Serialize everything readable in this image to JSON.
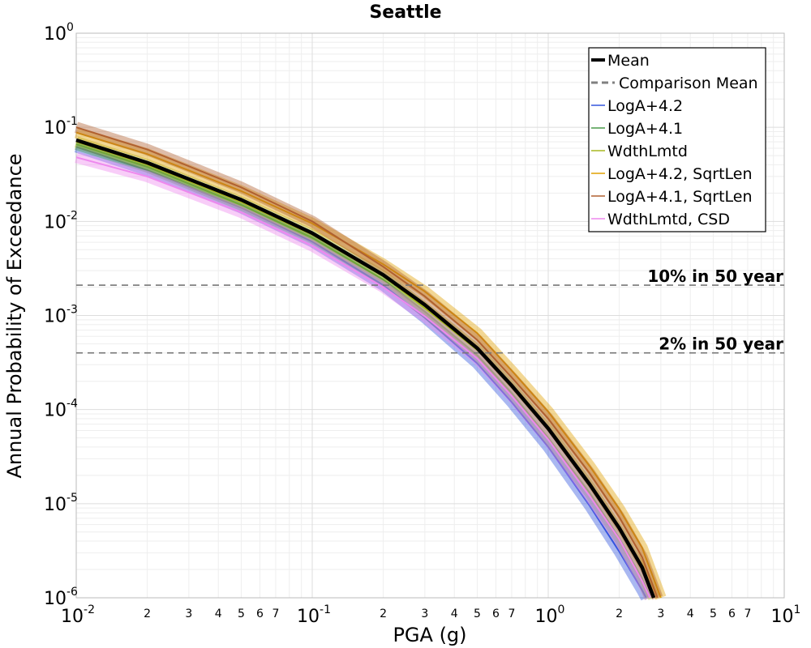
{
  "chart_data": {
    "type": "line",
    "title": "Seattle",
    "xlabel": "PGA (g)",
    "ylabel": "Annual Probability of Exceedance",
    "x_scale": "log",
    "y_scale": "log",
    "xlim": [
      0.01,
      10
    ],
    "ylim": [
      1e-06,
      1
    ],
    "grid": true,
    "legend_position": "top-right",
    "x_major_ticks": [
      {
        "base": "10",
        "exp": "-2"
      },
      {
        "base": "10",
        "exp": "-1"
      },
      {
        "base": "10",
        "exp": "0"
      },
      {
        "base": "10",
        "exp": "1"
      }
    ],
    "y_major_ticks": [
      {
        "base": "10",
        "exp": "0"
      },
      {
        "base": "10",
        "exp": "-1"
      },
      {
        "base": "10",
        "exp": "-2"
      },
      {
        "base": "10",
        "exp": "-3"
      },
      {
        "base": "10",
        "exp": "-4"
      },
      {
        "base": "10",
        "exp": "-5"
      },
      {
        "base": "10",
        "exp": "-6"
      }
    ],
    "x_minor_tick_labels": [
      "2",
      "3",
      "4",
      "5",
      "6",
      "7"
    ],
    "series": [
      {
        "name": "Mean",
        "style": "solid",
        "color": "#000000",
        "x": [
          0.01,
          0.02,
          0.05,
          0.1,
          0.2,
          0.3,
          0.5,
          0.7,
          1.0,
          1.5,
          2.0,
          2.5,
          2.8
        ],
        "y": [
          0.073,
          0.042,
          0.017,
          0.0075,
          0.0027,
          0.0013,
          0.00045,
          0.00018,
          6.3e-05,
          1.6e-05,
          5.5e-06,
          2.1e-06,
          1e-06
        ]
      },
      {
        "name": "Comparison Mean",
        "style": "dashed",
        "color": "#808080",
        "x": [],
        "y": []
      },
      {
        "name": "LogA+4.2",
        "color": "#3355dd",
        "x": [
          0.01,
          0.02,
          0.05,
          0.1,
          0.2,
          0.3,
          0.5,
          0.7,
          1.0,
          1.5,
          2.0,
          2.5,
          2.6
        ],
        "y": [
          0.062,
          0.035,
          0.014,
          0.0061,
          0.0021,
          0.00095,
          0.00031,
          0.00012,
          4e-05,
          9.5e-06,
          3.1e-06,
          1.2e-06,
          1e-06
        ]
      },
      {
        "name": "LogA+4.1",
        "color": "#4a9a4a",
        "x": [
          0.01,
          0.02,
          0.05,
          0.1,
          0.2,
          0.3,
          0.5,
          0.7,
          1.0,
          1.5,
          2.0,
          2.5,
          2.7
        ],
        "y": [
          0.066,
          0.038,
          0.015,
          0.0067,
          0.0024,
          0.0011,
          0.00038,
          0.00015,
          5e-05,
          1.3e-05,
          4.3e-06,
          1.6e-06,
          1e-06
        ]
      },
      {
        "name": "WdthLmtd",
        "color": "#a8b820",
        "x": [
          0.01,
          0.02,
          0.05,
          0.1,
          0.2,
          0.3,
          0.5,
          0.7,
          1.0,
          1.5,
          2.0,
          2.5,
          2.8
        ],
        "y": [
          0.07,
          0.04,
          0.016,
          0.0072,
          0.0026,
          0.0012,
          0.00043,
          0.00017,
          6e-05,
          1.5e-05,
          5e-06,
          1.9e-06,
          1e-06
        ]
      },
      {
        "name": "LogA+4.2, SqrtLen",
        "color": "#e0a000",
        "x": [
          0.01,
          0.02,
          0.05,
          0.1,
          0.2,
          0.3,
          0.5,
          0.7,
          1.0,
          1.5,
          2.0,
          2.5,
          3.0
        ],
        "y": [
          0.088,
          0.052,
          0.021,
          0.0095,
          0.0035,
          0.0018,
          0.00065,
          0.00026,
          9.5e-05,
          2.5e-05,
          8.8e-06,
          3.4e-06,
          1e-06
        ]
      },
      {
        "name": "LogA+4.1, SqrtLen",
        "color": "#b06030",
        "x": [
          0.01,
          0.02,
          0.05,
          0.1,
          0.2,
          0.3,
          0.5,
          0.7,
          1.0,
          1.5,
          2.0,
          2.5,
          2.9
        ],
        "y": [
          0.1,
          0.058,
          0.023,
          0.01,
          0.0033,
          0.0016,
          0.00055,
          0.00022,
          8e-05,
          2.1e-05,
          7.2e-06,
          2.7e-06,
          1e-06
        ]
      },
      {
        "name": "WdthLmtd, CSD",
        "color": "#ee88ee",
        "x": [
          0.01,
          0.02,
          0.05,
          0.1,
          0.2,
          0.3,
          0.5,
          0.7,
          1.0,
          1.5,
          2.0,
          2.5,
          2.7
        ],
        "y": [
          0.048,
          0.03,
          0.0125,
          0.0055,
          0.002,
          0.00098,
          0.00035,
          0.00014,
          4.8e-05,
          1.2e-05,
          4.2e-06,
          1.5e-06,
          1e-06
        ]
      }
    ],
    "reference_lines": [
      {
        "label": "10% in 50 year",
        "y": 0.0021
      },
      {
        "label": "2% in 50 year",
        "y": 0.0004
      }
    ]
  }
}
